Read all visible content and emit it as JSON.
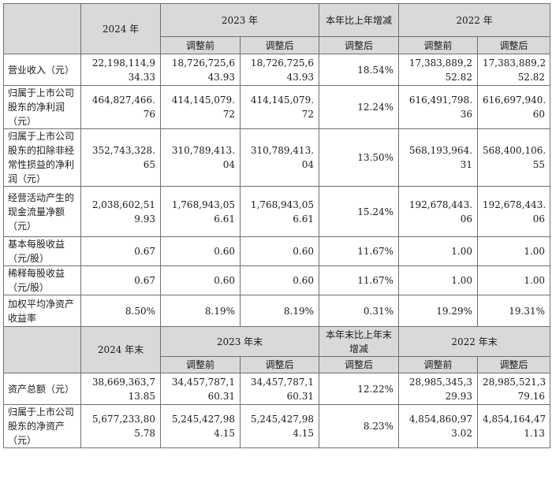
{
  "header1": {
    "c2024": "2024 年",
    "c2023": "2023 年",
    "cchange": "本年比上年增减",
    "c2022": "2022 年",
    "sub_before": "调整前",
    "sub_after": "调整后"
  },
  "rows1": [
    {
      "label": "营业收入（元）",
      "v2024": [
        "22,198,114,9",
        "34.33"
      ],
      "v2023a": [
        "18,726,725,6",
        "43.93"
      ],
      "v2023b": [
        "18,726,725,6",
        "43.93"
      ],
      "chg": "18.54%",
      "v2022a": [
        "17,383,889,2",
        "52.82"
      ],
      "v2022b": [
        "17,383,889,2",
        "52.82"
      ]
    },
    {
      "label": "归属于上市公司股东的净利润（元）",
      "v2024": [
        "464,827,466.",
        "76"
      ],
      "v2023a": [
        "414,145,079.",
        "72"
      ],
      "v2023b": [
        "414,145,079.",
        "72"
      ],
      "chg": "12.24%",
      "v2022a": [
        "616,491,798.",
        "36"
      ],
      "v2022b": [
        "616,697,940.",
        "60"
      ]
    },
    {
      "label": "归属于上市公司股东的扣除非经常性损益的净利润（元）",
      "v2024": [
        "352,743,328.",
        "65"
      ],
      "v2023a": [
        "310,789,413.",
        "04"
      ],
      "v2023b": [
        "310,789,413.",
        "04"
      ],
      "chg": "13.50%",
      "v2022a": [
        "568,193,964.",
        "31"
      ],
      "v2022b": [
        "568,400,106.",
        "55"
      ]
    },
    {
      "label": "经营活动产生的现金流量净额（元）",
      "v2024": [
        "2,038,602,51",
        "9.93"
      ],
      "v2023a": [
        "1,768,943,05",
        "6.61"
      ],
      "v2023b": [
        "1,768,943,05",
        "6.61"
      ],
      "chg": "15.24%",
      "v2022a": [
        "192,678,443.",
        "06"
      ],
      "v2022b": [
        "192,678,443.",
        "06"
      ]
    },
    {
      "label": "基本每股收益（元/股）",
      "v2024": [
        "0.67"
      ],
      "v2023a": [
        "0.60"
      ],
      "v2023b": [
        "0.60"
      ],
      "chg": "11.67%",
      "v2022a": [
        "1.00"
      ],
      "v2022b": [
        "1.00"
      ]
    },
    {
      "label": "稀释每股收益（元/股）",
      "v2024": [
        "0.67"
      ],
      "v2023a": [
        "0.60"
      ],
      "v2023b": [
        "0.60"
      ],
      "chg": "11.67%",
      "v2022a": [
        "1.00"
      ],
      "v2022b": [
        "1.00"
      ]
    },
    {
      "label": "加权平均净资产收益率",
      "v2024": [
        "8.50%"
      ],
      "v2023a": [
        "8.19%"
      ],
      "v2023b": [
        "8.19%"
      ],
      "chg": "0.31%",
      "v2022a": [
        "19.29%"
      ],
      "v2022b": [
        "19.31%"
      ]
    }
  ],
  "header2": {
    "c2024": "2024 年末",
    "c2023": "2023 年末",
    "cchange": "本年末比上年末增减",
    "c2022": "2022 年末",
    "sub_before": "调整前",
    "sub_after": "调整后"
  },
  "rows2": [
    {
      "label": "资产总额（元）",
      "v2024": [
        "38,669,363,7",
        "13.85"
      ],
      "v2023a": [
        "34,457,787,1",
        "60.31"
      ],
      "v2023b": [
        "34,457,787,1",
        "60.31"
      ],
      "chg": "12.22%",
      "v2022a": [
        "28,985,345,3",
        "29.93"
      ],
      "v2022b": [
        "28,985,521,3",
        "79.16"
      ]
    },
    {
      "label": "归属于上市公司股东的净资产（元）",
      "v2024": [
        "5,677,233,80",
        "5.78"
      ],
      "v2023a": [
        "5,245,427,98",
        "4.15"
      ],
      "v2023b": [
        "5,245,427,98",
        "4.15"
      ],
      "chg": "8.23%",
      "v2022a": [
        "4,854,860,97",
        "3.02"
      ],
      "v2022b": [
        "4,854,164,47",
        "1.13"
      ]
    }
  ]
}
